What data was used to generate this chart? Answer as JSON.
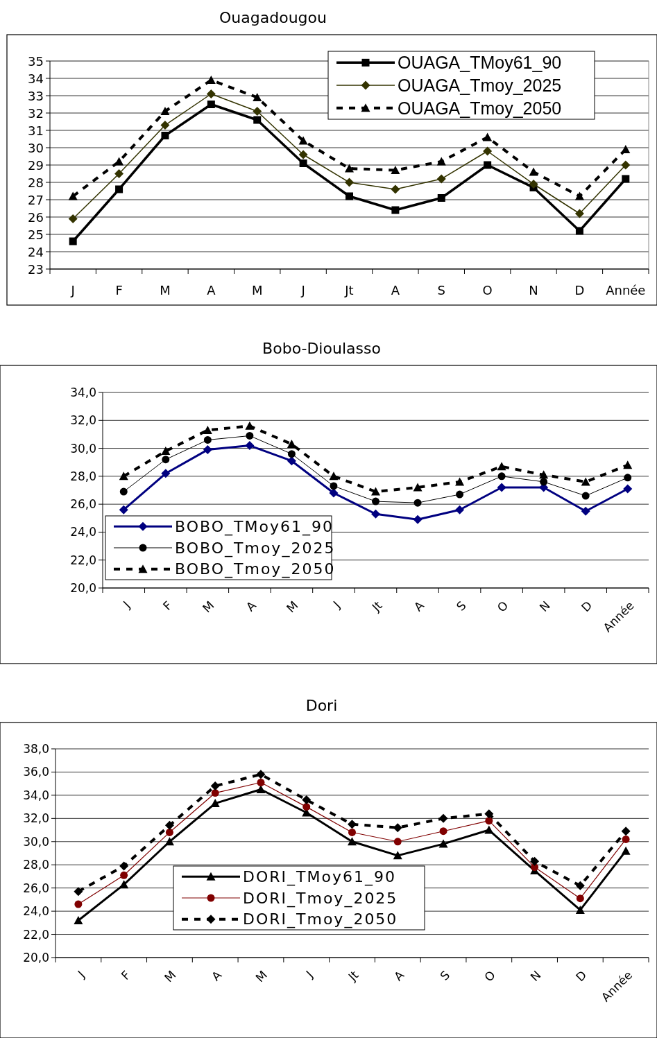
{
  "chart_data": [
    {
      "type": "line",
      "title": "Ouagadougou",
      "categories": [
        "J",
        "F",
        "M",
        "A",
        "M",
        "J",
        "Jt",
        "A",
        "S",
        "O",
        "N",
        "D",
        "Année"
      ],
      "ylim": [
        23,
        35
      ],
      "yticks": [
        23,
        24,
        25,
        26,
        27,
        28,
        29,
        30,
        31,
        32,
        33,
        34,
        35
      ],
      "grid": "y",
      "legend": "top right",
      "series": [
        {
          "name": "OUAGA_TMoy61_90",
          "color": "#000000",
          "marker": "square",
          "line_style": "solid",
          "values": [
            24.6,
            27.6,
            30.7,
            32.5,
            31.6,
            29.1,
            27.2,
            26.4,
            27.1,
            29.0,
            27.7,
            25.2,
            28.2
          ]
        },
        {
          "name": "OUAGA_Tmoy_2025",
          "color": "#333300",
          "marker": "diamond",
          "line_style": "solid",
          "values": [
            25.9,
            28.5,
            31.3,
            33.1,
            32.1,
            29.6,
            28.0,
            27.6,
            28.2,
            29.8,
            27.9,
            26.2,
            29.0
          ]
        },
        {
          "name": "OUAGA_Tmoy_2050",
          "color": "#000000",
          "marker": "triangle",
          "line_style": "dashed",
          "values": [
            27.2,
            29.2,
            32.1,
            33.9,
            32.9,
            30.4,
            28.8,
            28.7,
            29.2,
            30.6,
            28.6,
            27.2,
            29.9
          ]
        }
      ]
    },
    {
      "type": "line",
      "title": "Bobo-Dioulasso",
      "categories": [
        "J",
        "F",
        "M",
        "A",
        "M",
        "J",
        "Jt",
        "A",
        "S",
        "O",
        "N",
        "D",
        "Année"
      ],
      "ylim": [
        20,
        34
      ],
      "yticks": [
        {
          "value": 20,
          "label": "20,0"
        },
        {
          "value": 22,
          "label": "22,0"
        },
        {
          "value": 24,
          "label": "24,0"
        },
        {
          "value": 26,
          "label": "26,0"
        },
        {
          "value": 28,
          "label": "28,0"
        },
        {
          "value": 30,
          "label": "30,0"
        },
        {
          "value": 32,
          "label": "32,0"
        },
        {
          "value": 34,
          "label": "34,0"
        }
      ],
      "grid": "y",
      "legend": "bottom left",
      "series": [
        {
          "name": "BOBO_TMoy61_90",
          "color": "#000080",
          "marker": "diamond",
          "line_style": "solid",
          "values": [
            25.6,
            28.2,
            29.9,
            30.2,
            29.1,
            26.8,
            25.3,
            24.9,
            25.6,
            27.2,
            27.2,
            25.5,
            27.1
          ]
        },
        {
          "name": "BOBO_Tmoy_2025",
          "color": "#000000",
          "marker": "circle",
          "line_style": "solid",
          "values": [
            26.9,
            29.2,
            30.6,
            30.9,
            29.6,
            27.3,
            26.2,
            26.1,
            26.7,
            28.0,
            27.6,
            26.6,
            27.9
          ]
        },
        {
          "name": "BOBO_Tmoy_2050",
          "color": "#000000",
          "marker": "triangle",
          "line_style": "dashed",
          "values": [
            28.0,
            29.8,
            31.3,
            31.6,
            30.3,
            28.0,
            26.9,
            27.2,
            27.6,
            28.7,
            28.1,
            27.6,
            28.8
          ]
        }
      ]
    },
    {
      "type": "line",
      "title": "Dori",
      "categories": [
        "J",
        "F",
        "M",
        "A",
        "M",
        "J",
        "Jt",
        "A",
        "S",
        "O",
        "N",
        "D",
        "Année"
      ],
      "ylim": [
        20,
        38
      ],
      "yticks": [
        {
          "value": 20,
          "label": "20,0"
        },
        {
          "value": 22,
          "label": "22,0"
        },
        {
          "value": 24,
          "label": "24,0"
        },
        {
          "value": 26,
          "label": "26,0"
        },
        {
          "value": 28,
          "label": "28,0"
        },
        {
          "value": 30,
          "label": "30,0"
        },
        {
          "value": 32,
          "label": "32,0"
        },
        {
          "value": 34,
          "label": "34,0"
        },
        {
          "value": 36,
          "label": "36,0"
        },
        {
          "value": 38,
          "label": "38,0"
        }
      ],
      "grid": "y",
      "legend": "bottom",
      "series": [
        {
          "name": "DORI_TMoy61_90",
          "color": "#000000",
          "marker": "triangle",
          "line_style": "solid",
          "values": [
            23.2,
            26.3,
            30.0,
            33.3,
            34.5,
            32.5,
            30.0,
            28.8,
            29.8,
            31.0,
            27.5,
            24.1,
            29.2
          ]
        },
        {
          "name": "DORI_Tmoy_2025",
          "color": "#800000",
          "marker": "circle",
          "line_style": "solid",
          "values": [
            24.6,
            27.1,
            30.8,
            34.2,
            35.1,
            33.0,
            30.8,
            30.0,
            30.9,
            31.8,
            27.8,
            25.1,
            30.2
          ]
        },
        {
          "name": "DORI_Tmoy_2050",
          "color": "#000000",
          "marker": "diamond",
          "line_style": "dashed",
          "values": [
            25.7,
            27.9,
            31.4,
            34.8,
            35.8,
            33.6,
            31.5,
            31.2,
            32.0,
            32.4,
            28.3,
            26.2,
            30.9
          ]
        }
      ]
    }
  ]
}
